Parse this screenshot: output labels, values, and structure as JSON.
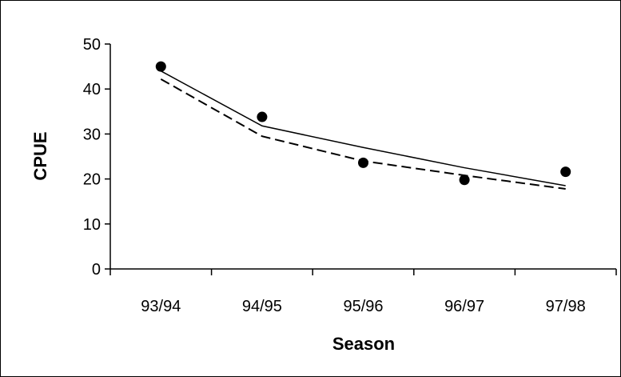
{
  "chart_data": {
    "type": "line",
    "categories": [
      "93/94",
      "94/95",
      "95/96",
      "96/97",
      "97/98"
    ],
    "xlabel": "Season",
    "ylabel": "CPUE",
    "ylim": [
      0,
      50
    ],
    "yticks": [
      0,
      10,
      20,
      30,
      40,
      50
    ],
    "grid": false,
    "legend": "none",
    "series": [
      {
        "style": "markers",
        "color": "#000000",
        "values": [
          45.0,
          33.8,
          23.6,
          19.8,
          21.6
        ]
      },
      {
        "style": "solid-line",
        "color": "#000000",
        "values": [
          44.0,
          31.8,
          27.0,
          22.5,
          18.5
        ]
      },
      {
        "style": "dashed-line",
        "color": "#000000",
        "values": [
          42.2,
          29.5,
          24.0,
          20.8,
          17.8
        ]
      }
    ]
  }
}
